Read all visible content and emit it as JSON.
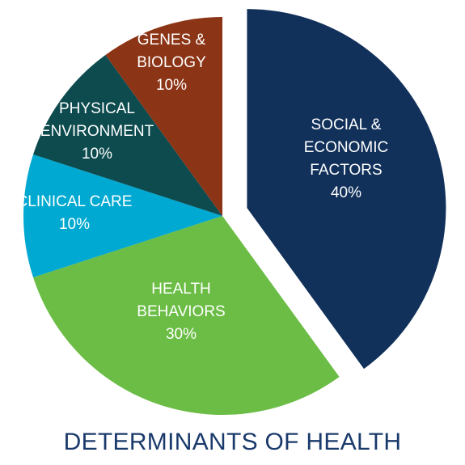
{
  "chart_data": {
    "type": "pie",
    "title": "DETERMINANTS OF HEALTH",
    "slices": [
      {
        "label": "SOCIAL & ECONOMIC FACTORS",
        "lines": [
          "SOCIAL &",
          "ECONOMIC",
          "FACTORS"
        ],
        "value": 40,
        "value_label": "40%",
        "color": "#11305a",
        "exploded": true
      },
      {
        "label": "HEALTH BEHAVIORS",
        "lines": [
          "HEALTH",
          "BEHAVIORS"
        ],
        "value": 30,
        "value_label": "30%",
        "color": "#6bbd45",
        "exploded": false
      },
      {
        "label": "CLINICAL CARE",
        "lines": [
          "CLINICAL CARE"
        ],
        "value": 10,
        "value_label": "10%",
        "color": "#00a9d1",
        "exploded": false
      },
      {
        "label": "PHYSICAL ENVIRONMENT",
        "lines": [
          "PHYSICAL",
          "ENVIRONMENT"
        ],
        "value": 10,
        "value_label": "10%",
        "color": "#0d4b4f",
        "exploded": false
      },
      {
        "label": "GENES & BIOLOGY",
        "lines": [
          "GENES &",
          "BIOLOGY"
        ],
        "value": 10,
        "value_label": "10%",
        "color": "#8c3416",
        "exploded": false
      }
    ],
    "start_direction": "top",
    "order": "clockwise",
    "label_color": "#ffffff",
    "title_color": "#1a3a6b"
  }
}
